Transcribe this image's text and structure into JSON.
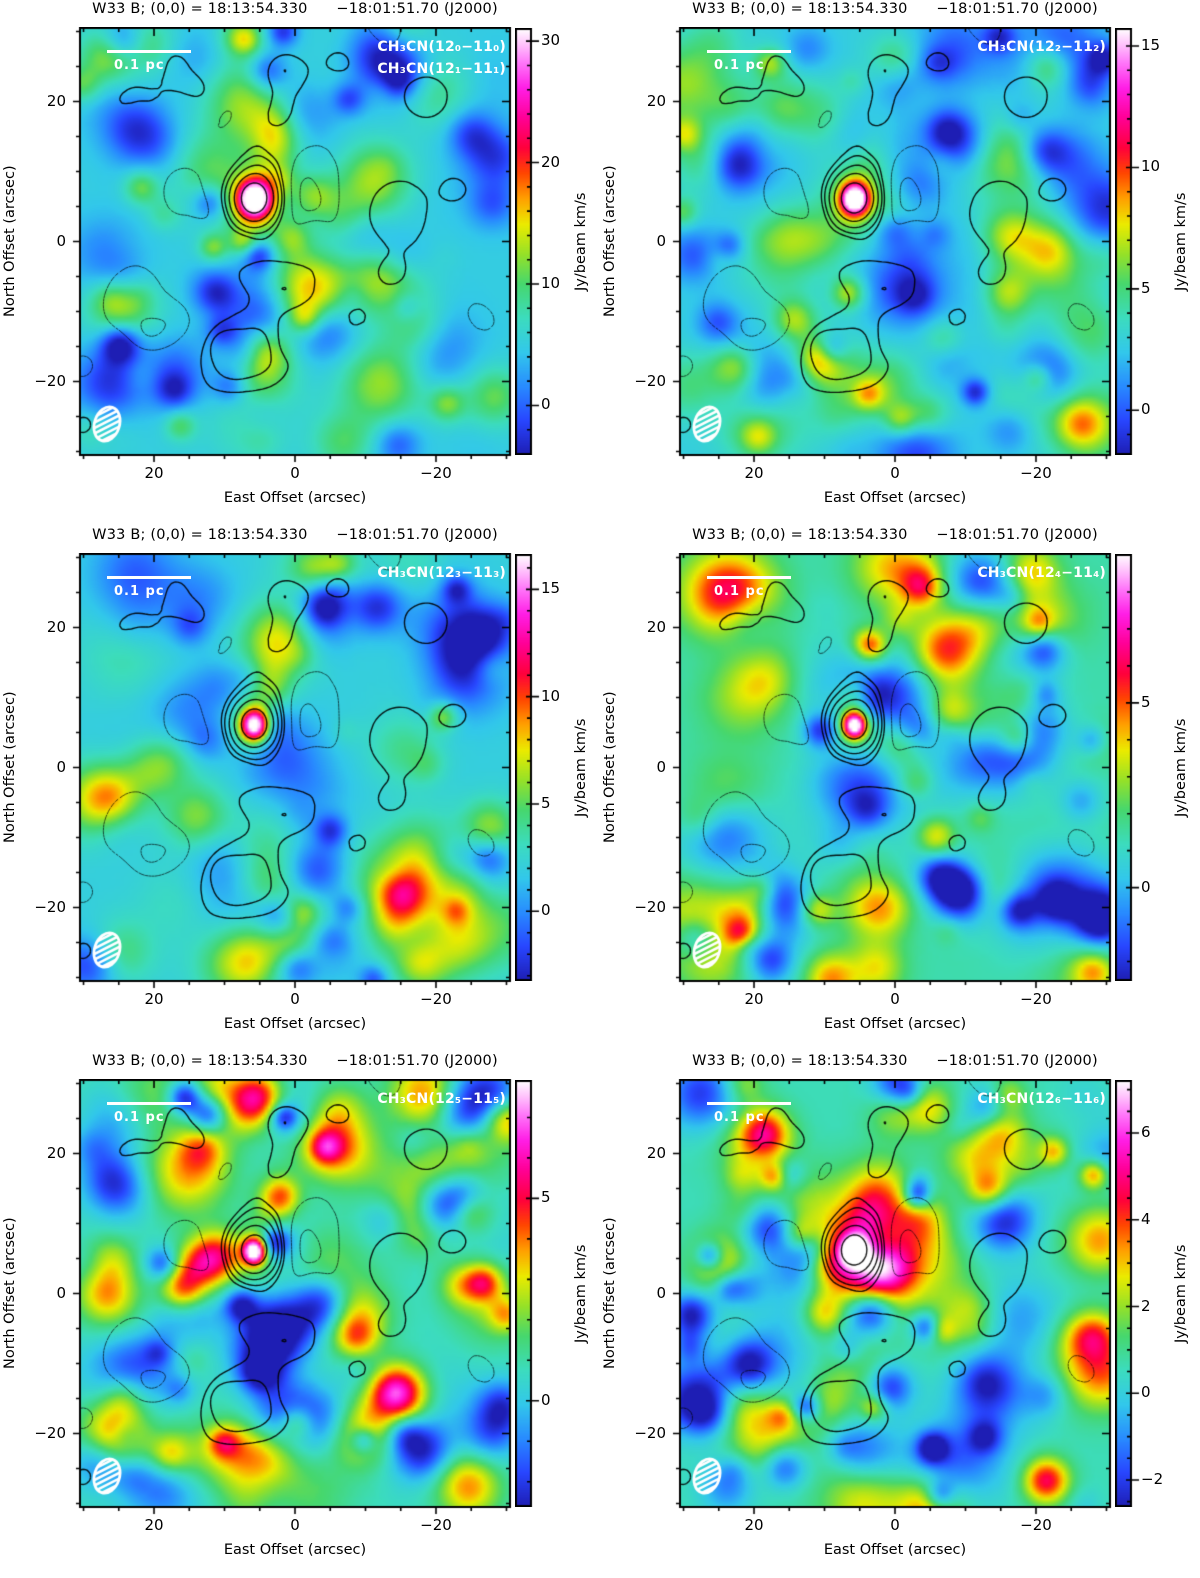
{
  "figure": {
    "panel_title": "W33 B; (0,0) = 18:13:54.330      −18:01:51.70 (J2000)",
    "xlabel": "East Offset (arcsec)",
    "ylabel": "North Offset (arcsec)",
    "colorbar_label": "Jy/beam km/s",
    "scalebar_label": "0.1 pc",
    "contour_color": "#000000",
    "annotation_color": "#ffffff"
  },
  "axes": {
    "x_range": [
      30.5,
      -30.5
    ],
    "y_range": [
      -30.5,
      30.5
    ],
    "major_tick_values": [
      20,
      0,
      -20
    ],
    "minor_tick_step": 5
  },
  "contour_overlay": {
    "description": "same black contour set repeated on all six panels; solid = positive levels, dashed = negative levels",
    "solid_levels": [
      0.55,
      1.1,
      2.1,
      3.6,
      6.0
    ],
    "dashed_levels": [
      -0.55,
      -1.1
    ],
    "seed": 77,
    "source_amp": 8,
    "tail_amp": 2.0
  },
  "colormap": {
    "stops": [
      [
        0.0,
        "#1e1eb4"
      ],
      [
        0.08,
        "#2846ff"
      ],
      [
        0.16,
        "#288cff"
      ],
      [
        0.24,
        "#32c8eb"
      ],
      [
        0.32,
        "#3cdcbe"
      ],
      [
        0.4,
        "#46d76e"
      ],
      [
        0.47,
        "#96e128"
      ],
      [
        0.54,
        "#ebeb00"
      ],
      [
        0.6,
        "#ffa000"
      ],
      [
        0.66,
        "#ff4600"
      ],
      [
        0.72,
        "#ff003c"
      ],
      [
        0.79,
        "#ff0096"
      ],
      [
        0.86,
        "#ff1ee6"
      ],
      [
        0.92,
        "#ff78fa"
      ],
      [
        0.96,
        "#ffbefc"
      ],
      [
        1.0,
        "#ffffff"
      ]
    ]
  },
  "chart_data": [
    {
      "type": "heatmap",
      "title": "W33 B; (0,0) = 18:13:54.330      −18:01:51.70 (J2000)",
      "transition_labels": [
        "CH₃CN(12₀−11₀)",
        "CH₃CN(12₁−11₁)"
      ],
      "x_axis_label": "East Offset (arcsec)",
      "y_axis_label": "North Offset (arcsec)",
      "x_ticks": [
        {
          "value": 20,
          "label": "20"
        },
        {
          "value": 0,
          "label": "0"
        },
        {
          "value": -20,
          "label": "−20"
        }
      ],
      "y_ticks": [
        {
          "value": 20,
          "label": "20"
        },
        {
          "value": 0,
          "label": "0"
        },
        {
          "value": -20,
          "label": "−20"
        }
      ],
      "colorbar": {
        "label": "Jy/beam km/s",
        "vmin": -4.0,
        "vmax": 31.0,
        "major_ticks": [
          {
            "value": 0,
            "label": "0"
          },
          {
            "value": 10,
            "label": "10"
          },
          {
            "value": 20,
            "label": "20"
          },
          {
            "value": 30,
            "label": "30"
          }
        ],
        "minor_step": 2
      },
      "source": {
        "east_arcsec": 6,
        "north_arcsec": 5,
        "peak_jy_beam_kms": 31
      },
      "scalebar_label": "0.1 pc",
      "render": {
        "seed": 11,
        "base_t": 0.27,
        "noise_t": 0.1,
        "core_sigma": 0.027,
        "halo_amp": 0.2
      }
    },
    {
      "type": "heatmap",
      "title": "W33 B; (0,0) = 18:13:54.330      −18:01:51.70 (J2000)",
      "transition_labels": [
        "CH₃CN(12₂−11₂)"
      ],
      "x_axis_label": "East Offset (arcsec)",
      "y_axis_label": "North Offset (arcsec)",
      "x_ticks": [
        {
          "value": 20,
          "label": "20"
        },
        {
          "value": 0,
          "label": "0"
        },
        {
          "value": -20,
          "label": "−20"
        }
      ],
      "y_ticks": [
        {
          "value": 20,
          "label": "20"
        },
        {
          "value": 0,
          "label": "0"
        },
        {
          "value": -20,
          "label": "−20"
        }
      ],
      "colorbar": {
        "label": "Jy/beam km/s",
        "vmin": -1.8,
        "vmax": 15.7,
        "major_ticks": [
          {
            "value": 0,
            "label": "0"
          },
          {
            "value": 5,
            "label": "5"
          },
          {
            "value": 10,
            "label": "10"
          },
          {
            "value": 15,
            "label": "15"
          }
        ],
        "minor_step": 1
      },
      "source": {
        "east_arcsec": 6,
        "north_arcsec": 5,
        "peak_jy_beam_kms": 15.5
      },
      "scalebar_label": "0.1 pc",
      "render": {
        "seed": 22,
        "base_t": 0.28,
        "noise_t": 0.11,
        "core_sigma": 0.023,
        "halo_amp": 0.14
      }
    },
    {
      "type": "heatmap",
      "title": "W33 B; (0,0) = 18:13:54.330      −18:01:51.70 (J2000)",
      "transition_labels": [
        "CH₃CN(12₃−11₃)"
      ],
      "x_axis_label": "East Offset (arcsec)",
      "y_axis_label": "North Offset (arcsec)",
      "x_ticks": [
        {
          "value": 20,
          "label": "20"
        },
        {
          "value": 0,
          "label": "0"
        },
        {
          "value": -20,
          "label": "−20"
        }
      ],
      "y_ticks": [
        {
          "value": 20,
          "label": "20"
        },
        {
          "value": 0,
          "label": "0"
        },
        {
          "value": -20,
          "label": "−20"
        }
      ],
      "colorbar": {
        "label": "Jy/beam km/s",
        "vmin": -3.2,
        "vmax": 16.6,
        "major_ticks": [
          {
            "value": 0,
            "label": "0"
          },
          {
            "value": 5,
            "label": "5"
          },
          {
            "value": 10,
            "label": "10"
          },
          {
            "value": 15,
            "label": "15"
          }
        ],
        "minor_step": 1
      },
      "source": {
        "east_arcsec": 6,
        "north_arcsec": 5,
        "peak_jy_beam_kms": 16.5
      },
      "scalebar_label": "0.1 pc",
      "render": {
        "seed": 33,
        "base_t": 0.28,
        "noise_t": 0.125,
        "core_sigma": 0.023,
        "halo_amp": 0.15
      }
    },
    {
      "type": "heatmap",
      "title": "W33 B; (0,0) = 18:13:54.330      −18:01:51.70 (J2000)",
      "transition_labels": [
        "CH₃CN(12₄−11₄)"
      ],
      "x_axis_label": "East Offset (arcsec)",
      "y_axis_label": "North Offset (arcsec)",
      "x_ticks": [
        {
          "value": 20,
          "label": "20"
        },
        {
          "value": 0,
          "label": "0"
        },
        {
          "value": -20,
          "label": "−20"
        }
      ],
      "y_ticks": [
        {
          "value": 20,
          "label": "20"
        },
        {
          "value": 0,
          "label": "0"
        },
        {
          "value": -20,
          "label": "−20"
        }
      ],
      "colorbar": {
        "label": "Jy/beam km/s",
        "vmin": -2.5,
        "vmax": 9.0,
        "major_ticks": [
          {
            "value": 0,
            "label": "0"
          },
          {
            "value": 5,
            "label": "5"
          }
        ],
        "minor_step": 1
      },
      "source": {
        "east_arcsec": 6,
        "north_arcsec": 5,
        "peak_jy_beam_kms": 9
      },
      "scalebar_label": "0.1 pc",
      "render": {
        "seed": 44,
        "base_t": 0.33,
        "noise_t": 0.145,
        "core_sigma": 0.019,
        "halo_amp": 0.1
      }
    },
    {
      "type": "heatmap",
      "title": "W33 B; (0,0) = 18:13:54.330      −18:01:51.70 (J2000)",
      "transition_labels": [
        "CH₃CN(12₅−11₅)"
      ],
      "x_axis_label": "East Offset (arcsec)",
      "y_axis_label": "North Offset (arcsec)",
      "x_ticks": [
        {
          "value": 20,
          "label": "20"
        },
        {
          "value": 0,
          "label": "0"
        },
        {
          "value": -20,
          "label": "−20"
        }
      ],
      "y_ticks": [
        {
          "value": 20,
          "label": "20"
        },
        {
          "value": 0,
          "label": "0"
        },
        {
          "value": -20,
          "label": "−20"
        }
      ],
      "colorbar": {
        "label": "Jy/beam km/s",
        "vmin": -2.6,
        "vmax": 7.9,
        "major_ticks": [
          {
            "value": 0,
            "label": "0"
          },
          {
            "value": 5,
            "label": "5"
          }
        ],
        "minor_step": 1
      },
      "source": {
        "east_arcsec": 6,
        "north_arcsec": 5,
        "peak_jy_beam_kms": 8
      },
      "scalebar_label": "0.1 pc",
      "render": {
        "seed": 55,
        "base_t": 0.35,
        "noise_t": 0.16,
        "core_sigma": 0.018,
        "halo_amp": 0.08
      }
    },
    {
      "type": "heatmap",
      "title": "W33 B; (0,0) = 18:13:54.330      −18:01:51.70 (J2000)",
      "transition_labels": [
        "CH₃CN(12₆−11₆)"
      ],
      "x_axis_label": "East Offset (arcsec)",
      "y_axis_label": "North Offset (arcsec)",
      "x_ticks": [
        {
          "value": 20,
          "label": "20"
        },
        {
          "value": 0,
          "label": "0"
        },
        {
          "value": -20,
          "label": "−20"
        }
      ],
      "y_ticks": [
        {
          "value": 20,
          "label": "20"
        },
        {
          "value": 0,
          "label": "0"
        },
        {
          "value": -20,
          "label": "−20"
        }
      ],
      "colorbar": {
        "label": "Jy/beam km/s",
        "vmin": -2.6,
        "vmax": 7.2,
        "major_ticks": [
          {
            "value": -2,
            "label": "−2"
          },
          {
            "value": 0,
            "label": "0"
          },
          {
            "value": 2,
            "label": "2"
          },
          {
            "value": 4,
            "label": "4"
          },
          {
            "value": 6,
            "label": "6"
          }
        ],
        "minor_step": 0.5
      },
      "source": {
        "east_arcsec": 6,
        "north_arcsec": 5,
        "peak_jy_beam_kms": 7
      },
      "scalebar_label": "0.1 pc",
      "render": {
        "seed": 66,
        "base_t": 0.35,
        "noise_t": 0.16,
        "core_sigma": 0.018,
        "halo_amp": 0.08
      }
    }
  ]
}
